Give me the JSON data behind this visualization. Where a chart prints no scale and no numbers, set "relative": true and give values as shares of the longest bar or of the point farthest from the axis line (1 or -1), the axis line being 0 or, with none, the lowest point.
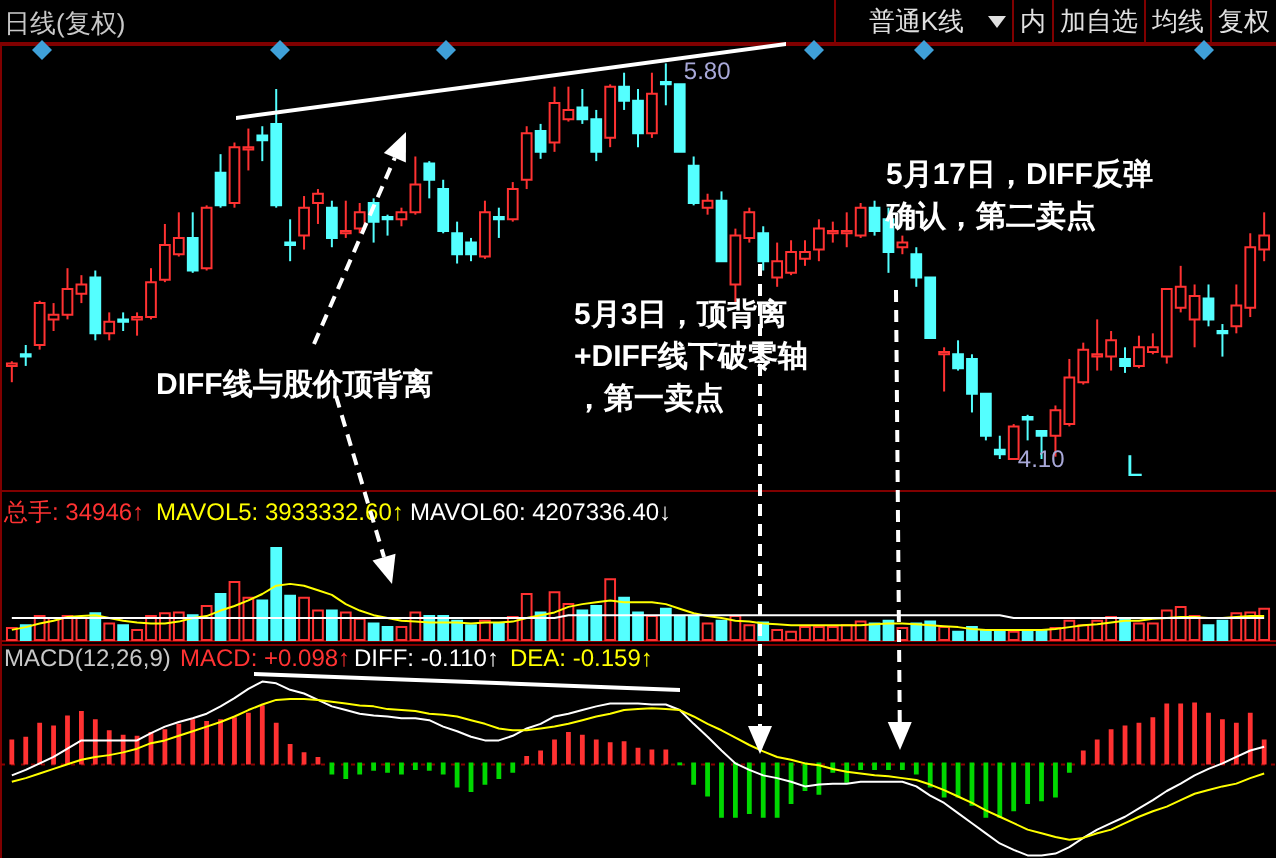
{
  "chart_data": [
    {
      "type": "candlestick",
      "title": "日线(复权)",
      "categories": [
        null,
        null,
        null,
        null,
        null,
        null,
        null,
        null,
        null,
        null,
        null,
        null,
        null,
        null,
        null,
        null,
        null,
        null,
        null,
        null,
        null,
        null,
        null,
        null,
        null,
        null,
        null,
        null,
        null,
        null,
        null,
        null,
        null,
        null,
        null,
        null,
        null,
        null,
        null,
        null,
        null,
        null,
        null,
        null,
        null,
        null,
        null,
        null,
        null,
        null,
        null,
        null,
        null,
        null,
        null,
        null,
        null,
        null,
        null,
        null,
        null,
        null,
        null,
        null,
        null,
        null,
        null,
        null,
        null,
        null,
        null,
        null,
        null,
        null,
        null,
        null,
        null,
        null,
        null,
        null,
        null,
        null,
        null,
        null,
        null,
        null,
        null,
        null,
        null,
        null,
        null
      ],
      "ohlc": [
        [
          4.5,
          4.52,
          4.43,
          4.51
        ],
        [
          4.55,
          4.59,
          4.5,
          4.54
        ],
        [
          4.59,
          4.78,
          4.57,
          4.77
        ],
        [
          4.7,
          4.77,
          4.65,
          4.72
        ],
        [
          4.72,
          4.92,
          4.7,
          4.83
        ],
        [
          4.81,
          4.89,
          4.77,
          4.85
        ],
        [
          4.88,
          4.91,
          4.61,
          4.64
        ],
        [
          4.64,
          4.73,
          4.61,
          4.69
        ],
        [
          4.7,
          4.73,
          4.65,
          4.69
        ],
        [
          4.7,
          4.73,
          4.63,
          4.71
        ],
        [
          4.71,
          4.92,
          4.7,
          4.86
        ],
        [
          4.87,
          5.11,
          4.86,
          5.02
        ],
        [
          4.98,
          5.16,
          4.97,
          5.05
        ],
        [
          5.05,
          5.16,
          4.9,
          4.91
        ],
        [
          4.92,
          5.19,
          4.91,
          5.18
        ],
        [
          5.33,
          5.41,
          5.18,
          5.19
        ],
        [
          5.2,
          5.46,
          5.18,
          5.44
        ],
        [
          5.43,
          5.52,
          5.34,
          5.44
        ],
        [
          5.49,
          5.53,
          5.38,
          5.47
        ],
        [
          5.54,
          5.69,
          5.18,
          5.19
        ],
        [
          5.03,
          5.13,
          4.95,
          5.02
        ],
        [
          5.06,
          5.23,
          5.0,
          5.18
        ],
        [
          5.2,
          5.26,
          5.11,
          5.24
        ],
        [
          5.18,
          5.21,
          5.01,
          5.05
        ],
        [
          5.07,
          5.21,
          5.05,
          5.08
        ],
        [
          5.09,
          5.2,
          5.07,
          5.16
        ],
        [
          5.2,
          5.22,
          5.03,
          5.12
        ],
        [
          5.14,
          5.15,
          5.06,
          5.13
        ],
        [
          5.13,
          5.18,
          5.1,
          5.16
        ],
        [
          5.16,
          5.4,
          5.15,
          5.28
        ],
        [
          5.37,
          5.38,
          5.22,
          5.3
        ],
        [
          5.26,
          5.3,
          5.07,
          5.08
        ],
        [
          5.07,
          5.12,
          4.94,
          4.98
        ],
        [
          5.03,
          5.05,
          4.95,
          4.98
        ],
        [
          4.97,
          5.21,
          4.96,
          5.16
        ],
        [
          5.14,
          5.18,
          5.05,
          5.13
        ],
        [
          5.13,
          5.29,
          5.12,
          5.26
        ],
        [
          5.3,
          5.53,
          5.26,
          5.5
        ],
        [
          5.51,
          5.54,
          5.39,
          5.42
        ],
        [
          5.46,
          5.7,
          5.42,
          5.63
        ],
        [
          5.56,
          5.7,
          5.55,
          5.6
        ],
        [
          5.61,
          5.69,
          5.54,
          5.56
        ],
        [
          5.56,
          5.6,
          5.38,
          5.42
        ],
        [
          5.48,
          5.71,
          5.44,
          5.7
        ],
        [
          5.7,
          5.76,
          5.6,
          5.64
        ],
        [
          5.64,
          5.69,
          5.44,
          5.5
        ],
        [
          5.5,
          5.76,
          5.48,
          5.67
        ],
        [
          5.72,
          5.8,
          5.62,
          5.71
        ],
        [
          5.71,
          5.71,
          5.42,
          5.42
        ],
        [
          5.36,
          5.4,
          5.19,
          5.2
        ],
        [
          5.18,
          5.24,
          5.15,
          5.21
        ],
        [
          5.21,
          5.25,
          4.95,
          4.95
        ],
        [
          4.85,
          5.09,
          4.77,
          5.06
        ],
        [
          5.05,
          5.18,
          5.03,
          5.16
        ],
        [
          5.07,
          5.1,
          4.91,
          4.95
        ],
        [
          4.88,
          5.03,
          4.84,
          4.95
        ],
        [
          4.9,
          5.04,
          4.89,
          4.99
        ],
        [
          4.96,
          5.04,
          4.93,
          4.99
        ],
        [
          5.0,
          5.13,
          4.95,
          5.09
        ],
        [
          5.07,
          5.12,
          5.03,
          5.08
        ],
        [
          5.07,
          5.16,
          5.01,
          5.08
        ],
        [
          5.06,
          5.2,
          5.05,
          5.18
        ],
        [
          5.18,
          5.21,
          5.06,
          5.08
        ],
        [
          5.13,
          5.18,
          4.9,
          4.99
        ],
        [
          5.01,
          5.06,
          4.98,
          5.03
        ],
        [
          4.98,
          5.01,
          4.84,
          4.88
        ],
        [
          4.88,
          4.88,
          4.62,
          4.62
        ],
        [
          4.55,
          4.58,
          4.39,
          4.56
        ],
        [
          4.55,
          4.61,
          4.48,
          4.49
        ],
        [
          4.53,
          4.55,
          4.3,
          4.38
        ],
        [
          4.38,
          4.38,
          4.18,
          4.2
        ],
        [
          4.14,
          4.2,
          4.1,
          4.12
        ],
        [
          4.1,
          4.25,
          4.1,
          4.24
        ],
        [
          4.28,
          4.29,
          4.18,
          4.27
        ],
        [
          4.22,
          4.22,
          4.1,
          4.2
        ],
        [
          4.2,
          4.33,
          4.11,
          4.31
        ],
        [
          4.25,
          4.53,
          4.24,
          4.45
        ],
        [
          4.43,
          4.6,
          4.42,
          4.57
        ],
        [
          4.54,
          4.7,
          4.48,
          4.55
        ],
        [
          4.54,
          4.65,
          4.48,
          4.61
        ],
        [
          4.53,
          4.58,
          4.47,
          4.5
        ],
        [
          4.5,
          4.63,
          4.49,
          4.58
        ],
        [
          4.56,
          4.64,
          4.55,
          4.58
        ],
        [
          4.54,
          4.83,
          4.51,
          4.83
        ],
        [
          4.75,
          4.93,
          4.73,
          4.84
        ],
        [
          4.7,
          4.85,
          4.58,
          4.8
        ],
        [
          4.79,
          4.85,
          4.67,
          4.7
        ],
        [
          4.65,
          4.68,
          4.54,
          4.64
        ],
        [
          4.67,
          4.85,
          4.64,
          4.76
        ],
        [
          4.75,
          5.07,
          4.71,
          5.01
        ],
        [
          5.0,
          5.16,
          4.95,
          5.06
        ]
      ],
      "colors": [
        "#ff3232",
        "#54ffff",
        "#ff3232",
        "#ff3232",
        "#ff3232",
        "#ff3232",
        "#54ffff",
        "#ff3232",
        "#54ffff",
        "#ff3232",
        "#ff3232",
        "#ff3232",
        "#ff3232",
        "#54ffff",
        "#ff3232",
        "#54ffff",
        "#ff3232",
        "#ff3232",
        "#54ffff",
        "#54ffff",
        "#54ffff",
        "#ff3232",
        "#ff3232",
        "#54ffff",
        "#ff3232",
        "#ff3232",
        "#54ffff",
        "#54ffff",
        "#ff3232",
        "#ff3232",
        "#54ffff",
        "#54ffff",
        "#54ffff",
        "#54ffff",
        "#ff3232",
        "#54ffff",
        "#ff3232",
        "#ff3232",
        "#54ffff",
        "#ff3232",
        "#ff3232",
        "#54ffff",
        "#54ffff",
        "#ff3232",
        "#54ffff",
        "#54ffff",
        "#ff3232",
        "#54ffff",
        "#54ffff",
        "#54ffff",
        "#ff3232",
        "#54ffff",
        "#ff3232",
        "#ff3232",
        "#54ffff",
        "#ff3232",
        "#ff3232",
        "#ff3232",
        "#ff3232",
        "#ff3232",
        "#ff3232",
        "#ff3232",
        "#54ffff",
        "#54ffff",
        "#ff3232",
        "#54ffff",
        "#54ffff",
        "#ff3232",
        "#54ffff",
        "#54ffff",
        "#54ffff",
        "#54ffff",
        "#ff3232",
        "#54ffff",
        "#54ffff",
        "#ff3232",
        "#ff3232",
        "#ff3232",
        "#ff3232",
        "#ff3232",
        "#54ffff",
        "#ff3232",
        "#ff3232",
        "#ff3232",
        "#ff3232",
        "#ff3232",
        "#54ffff",
        "#54ffff",
        "#ff3232",
        "#ff3232",
        "#ff3232"
      ],
      "annotations": [
        "普通K线",
        "内",
        "加自选",
        "均线",
        "复权",
        "5.80",
        "4.10",
        "DIFF线与股价顶背离",
        "5月3日，顶背离",
        "+DIFF线下破零轴",
        "，第一卖点",
        "5月17日，DIFF反弹",
        "确认，第二卖点",
        "L"
      ]
    },
    {
      "type": "bar",
      "relative": true,
      "categories": [
        null,
        null,
        null,
        null,
        null,
        null,
        null,
        null,
        null,
        null,
        null,
        null,
        null,
        null,
        null,
        null,
        null,
        null,
        null,
        null,
        null,
        null,
        null,
        null,
        null,
        null,
        null,
        null,
        null,
        null,
        null,
        null,
        null,
        null,
        null,
        null,
        null,
        null,
        null,
        null,
        null,
        null,
        null,
        null,
        null,
        null,
        null,
        null,
        null,
        null,
        null,
        null,
        null,
        null,
        null,
        null,
        null,
        null,
        null,
        null,
        null,
        null,
        null,
        null,
        null,
        null,
        null,
        null,
        null,
        null,
        null,
        null,
        null,
        null,
        null,
        null,
        null,
        null,
        null,
        null,
        null,
        null,
        null,
        null,
        null,
        null,
        null,
        null,
        null,
        null,
        null
      ],
      "series": [
        {
          "name": "总手:",
          "type": "bar",
          "values": [
            0.13,
            0.16,
            0.26,
            0.24,
            0.26,
            0.24,
            0.29,
            0.18,
            0.16,
            0.11,
            0.26,
            0.29,
            0.3,
            0.27,
            0.37,
            0.5,
            0.63,
            0.46,
            0.43,
            1,
            0.48,
            0.46,
            0.32,
            0.32,
            0.3,
            0.23,
            0.18,
            0.14,
            0.14,
            0.3,
            0.26,
            0.26,
            0.21,
            0.16,
            0.21,
            0.18,
            0.25,
            0.5,
            0.3,
            0.52,
            0.39,
            0.32,
            0.37,
            0.66,
            0.46,
            0.3,
            0.26,
            0.34,
            0.26,
            0.25,
            0.18,
            0.21,
            0.26,
            0.16,
            0.19,
            0.11,
            0.09,
            0.14,
            0.14,
            0.14,
            0.16,
            0.2,
            0.18,
            0.21,
            0.13,
            0.18,
            0.2,
            0.14,
            0.09,
            0.14,
            0.11,
            0.09,
            0.09,
            0.09,
            0.11,
            0.13,
            0.21,
            0.16,
            0.21,
            0.25,
            0.23,
            0.18,
            0.18,
            0.32,
            0.36,
            0.26,
            0.16,
            0.21,
            0.29,
            0.3,
            0.34
          ],
          "colors": [
            "#ff3232",
            "#54ffff",
            "#ff3232",
            "#ff3232",
            "#ff3232",
            "#ff3232",
            "#54ffff",
            "#ff3232",
            "#54ffff",
            "#ff3232",
            "#ff3232",
            "#ff3232",
            "#ff3232",
            "#54ffff",
            "#ff3232",
            "#54ffff",
            "#ff3232",
            "#ff3232",
            "#54ffff",
            "#54ffff",
            "#54ffff",
            "#ff3232",
            "#ff3232",
            "#54ffff",
            "#ff3232",
            "#ff3232",
            "#54ffff",
            "#54ffff",
            "#ff3232",
            "#ff3232",
            "#54ffff",
            "#54ffff",
            "#54ffff",
            "#54ffff",
            "#ff3232",
            "#54ffff",
            "#ff3232",
            "#ff3232",
            "#54ffff",
            "#ff3232",
            "#ff3232",
            "#54ffff",
            "#54ffff",
            "#ff3232",
            "#54ffff",
            "#54ffff",
            "#ff3232",
            "#54ffff",
            "#54ffff",
            "#54ffff",
            "#ff3232",
            "#54ffff",
            "#ff3232",
            "#ff3232",
            "#54ffff",
            "#ff3232",
            "#ff3232",
            "#ff3232",
            "#ff3232",
            "#ff3232",
            "#ff3232",
            "#ff3232",
            "#54ffff",
            "#54ffff",
            "#ff3232",
            "#54ffff",
            "#54ffff",
            "#ff3232",
            "#54ffff",
            "#54ffff",
            "#54ffff",
            "#54ffff",
            "#ff3232",
            "#54ffff",
            "#54ffff",
            "#ff3232",
            "#ff3232",
            "#ff3232",
            "#ff3232",
            "#ff3232",
            "#54ffff",
            "#ff3232",
            "#ff3232",
            "#ff3232",
            "#ff3232",
            "#ff3232",
            "#54ffff",
            "#54ffff",
            "#ff3232",
            "#ff3232",
            "#ff3232"
          ]
        },
        {
          "name": "MAVOL5:",
          "type": "line",
          "color": "#ffff00",
          "values": [
            0.11,
            0.14,
            0.18,
            0.21,
            0.25,
            0.26,
            0.27,
            0.24,
            0.21,
            0.19,
            0.18,
            0.18,
            0.2,
            0.24,
            0.26,
            0.32,
            0.37,
            0.43,
            0.5,
            0.59,
            0.61,
            0.59,
            0.54,
            0.49,
            0.39,
            0.32,
            0.27,
            0.24,
            0.21,
            0.2,
            0.19,
            0.19,
            0.19,
            0.18,
            0.19,
            0.19,
            0.2,
            0.24,
            0.27,
            0.3,
            0.36,
            0.39,
            0.41,
            0.43,
            0.41,
            0.41,
            0.41,
            0.39,
            0.34,
            0.29,
            0.26,
            0.24,
            0.21,
            0.2,
            0.18,
            0.17,
            0.16,
            0.16,
            0.16,
            0.16,
            0.16,
            0.16,
            0.17,
            0.18,
            0.18,
            0.17,
            0.16,
            0.15,
            0.14,
            0.12,
            0.11,
            0.11,
            0.11,
            0.11,
            0.11,
            0.12,
            0.14,
            0.16,
            0.17,
            0.19,
            0.21,
            0.21,
            0.23,
            0.24,
            0.25,
            0.25,
            0.24,
            0.24,
            0.25,
            0.26,
            0.26
          ]
        },
        {
          "name": "MAVOL60:",
          "type": "line",
          "color": "#ffffff",
          "values": [
            0.24,
            0.24,
            0.24,
            0.24,
            0.24,
            0.24,
            0.24,
            0.24,
            0.24,
            0.24,
            0.24,
            0.24,
            0.24,
            0.24,
            0.24,
            0.24,
            0.24,
            0.24,
            0.24,
            0.24,
            0.24,
            0.24,
            0.24,
            0.24,
            0.24,
            0.24,
            0.24,
            0.24,
            0.24,
            0.24,
            0.24,
            0.24,
            0.24,
            0.24,
            0.24,
            0.24,
            0.24,
            0.24,
            0.24,
            0.24,
            0.27,
            0.27,
            0.27,
            0.27,
            0.27,
            0.27,
            0.27,
            0.27,
            0.27,
            0.27,
            0.27,
            0.27,
            0.27,
            0.27,
            0.27,
            0.27,
            0.27,
            0.27,
            0.27,
            0.27,
            0.27,
            0.27,
            0.27,
            0.27,
            0.27,
            0.27,
            0.27,
            0.27,
            0.27,
            0.27,
            0.27,
            0.27,
            0.24,
            0.24,
            0.24,
            0.24,
            0.24,
            0.24,
            0.24,
            0.24,
            0.24,
            0.24,
            0.24,
            0.24,
            0.24,
            0.24,
            0.24,
            0.24,
            0.24,
            0.24,
            0.24
          ]
        }
      ],
      "annotations": [
        "34946↑",
        "3933332.60↑",
        "4207336.40↓"
      ]
    },
    {
      "type": "bar",
      "relative": true,
      "title": "MACD(12,26,9)",
      "ref_lines": [
        {
          "axis": "y",
          "value": 0,
          "color": "#8b0000",
          "line_style": "dotted"
        }
      ],
      "categories": [
        null,
        null,
        null,
        null,
        null,
        null,
        null,
        null,
        null,
        null,
        null,
        null,
        null,
        null,
        null,
        null,
        null,
        null,
        null,
        null,
        null,
        null,
        null,
        null,
        null,
        null,
        null,
        null,
        null,
        null,
        null,
        null,
        null,
        null,
        null,
        null,
        null,
        null,
        null,
        null,
        null,
        null,
        null,
        null,
        null,
        null,
        null,
        null,
        null,
        null,
        null,
        null,
        null,
        null,
        null,
        null,
        null,
        null,
        null,
        null,
        null,
        null,
        null,
        null,
        null,
        null,
        null,
        null,
        null,
        null,
        null,
        null,
        null,
        null,
        null,
        null,
        null,
        null,
        null,
        null,
        null,
        null,
        null,
        null,
        null,
        null,
        null,
        null,
        null,
        null,
        null
      ],
      "series": [
        {
          "name": "MACD:",
          "type": "bar",
          "values": [
            0.25,
            0.28,
            0.43,
            0.4,
            0.51,
            0.56,
            0.47,
            0.35,
            0.3,
            0.29,
            0.33,
            0.36,
            0.42,
            0.47,
            0.45,
            0.47,
            0.49,
            0.54,
            0.62,
            0.43,
            0.2,
            0.11,
            0.06,
            -0.11,
            -0.16,
            -0.11,
            -0.07,
            -0.09,
            -0.11,
            -0.06,
            -0.07,
            -0.11,
            -0.25,
            -0.3,
            -0.22,
            -0.16,
            -0.09,
            0.07,
            0.13,
            0.25,
            0.33,
            0.3,
            0.25,
            0.22,
            0.23,
            0.16,
            0.14,
            0.14,
            -0.01,
            -0.22,
            -0.35,
            -0.58,
            -0.58,
            -0.54,
            -0.58,
            -0.58,
            -0.43,
            -0.29,
            -0.33,
            -0.09,
            -0.2,
            -0.06,
            -0.06,
            -0.06,
            -0.06,
            -0.11,
            -0.25,
            -0.36,
            -0.36,
            -0.45,
            -0.58,
            -0.58,
            -0.51,
            -0.43,
            -0.4,
            -0.36,
            -0.09,
            0.13,
            0.25,
            0.36,
            0.4,
            0.43,
            0.49,
            0.64,
            0.64,
            0.65,
            0.54,
            0.47,
            0.43,
            0.54,
            0.25
          ],
          "colors": [
            "#ff3232",
            "#ff3232",
            "#ff3232",
            "#ff3232",
            "#ff3232",
            "#ff3232",
            "#ff3232",
            "#ff3232",
            "#ff3232",
            "#ff3232",
            "#ff3232",
            "#ff3232",
            "#ff3232",
            "#ff3232",
            "#ff3232",
            "#ff3232",
            "#ff3232",
            "#ff3232",
            "#ff3232",
            "#ff3232",
            "#ff3232",
            "#ff3232",
            "#ff3232",
            "#00d800",
            "#00d800",
            "#00d800",
            "#00d800",
            "#00d800",
            "#00d800",
            "#00d800",
            "#00d800",
            "#00d800",
            "#00d800",
            "#00d800",
            "#00d800",
            "#00d800",
            "#00d800",
            "#ff3232",
            "#ff3232",
            "#ff3232",
            "#ff3232",
            "#ff3232",
            "#ff3232",
            "#ff3232",
            "#ff3232",
            "#ff3232",
            "#ff3232",
            "#ff3232",
            "#00d800",
            "#00d800",
            "#00d800",
            "#00d800",
            "#00d800",
            "#00d800",
            "#00d800",
            "#00d800",
            "#00d800",
            "#00d800",
            "#00d800",
            "#00d800",
            "#00d800",
            "#00d800",
            "#00d800",
            "#00d800",
            "#00d800",
            "#00d800",
            "#00d800",
            "#00d800",
            "#00d800",
            "#00d800",
            "#00d800",
            "#00d800",
            "#00d800",
            "#00d800",
            "#00d800",
            "#00d800",
            "#00d800",
            "#ff3232",
            "#ff3232",
            "#ff3232",
            "#ff3232",
            "#ff3232",
            "#ff3232",
            "#ff3232",
            "#ff3232",
            "#ff3232",
            "#ff3232",
            "#ff3232",
            "#ff3232",
            "#ff3232",
            "#ff3232"
          ]
        },
        {
          "name": "DIFF:",
          "type": "line",
          "color": "#ffffff",
          "values": [
            -0.13,
            -0.07,
            0,
            0.07,
            0.16,
            0.25,
            0.25,
            0.25,
            0.25,
            0.25,
            0.33,
            0.4,
            0.45,
            0.49,
            0.54,
            0.62,
            0.71,
            0.81,
            0.89,
            0.87,
            0.8,
            0.76,
            0.69,
            0.62,
            0.58,
            0.54,
            0.52,
            0.51,
            0.49,
            0.49,
            0.47,
            0.4,
            0.35,
            0.29,
            0.25,
            0.25,
            0.3,
            0.38,
            0.43,
            0.51,
            0.54,
            0.58,
            0.62,
            0.65,
            0.65,
            0.65,
            0.64,
            0.64,
            0.58,
            0.43,
            0.29,
            0.14,
            0,
            -0.07,
            -0.13,
            -0.16,
            -0.2,
            -0.25,
            -0.23,
            -0.22,
            -0.22,
            -0.2,
            -0.2,
            -0.2,
            -0.2,
            -0.25,
            -0.35,
            -0.43,
            -0.54,
            -0.65,
            -0.76,
            -0.87,
            -0.94,
            -1,
            -1,
            -0.98,
            -0.91,
            -0.81,
            -0.72,
            -0.65,
            -0.58,
            -0.49,
            -0.4,
            -0.3,
            -0.22,
            -0.13,
            -0.06,
            0,
            0.07,
            0.14,
            0.18
          ]
        },
        {
          "name": "DEA:",
          "type": "line",
          "color": "#ffff00",
          "values": [
            -0.2,
            -0.16,
            -0.11,
            -0.06,
            -0.01,
            0.04,
            0.07,
            0.09,
            0.12,
            0.16,
            0.22,
            0.25,
            0.3,
            0.35,
            0.4,
            0.45,
            0.51,
            0.58,
            0.64,
            0.69,
            0.7,
            0.7,
            0.69,
            0.67,
            0.65,
            0.63,
            0.62,
            0.59,
            0.58,
            0.57,
            0.54,
            0.53,
            0.51,
            0.47,
            0.43,
            0.38,
            0.36,
            0.36,
            0.38,
            0.4,
            0.43,
            0.47,
            0.51,
            0.54,
            0.58,
            0.59,
            0.6,
            0.59,
            0.58,
            0.51,
            0.43,
            0.36,
            0.28,
            0.2,
            0.13,
            0.07,
            0.04,
            0,
            -0.02,
            -0.06,
            -0.09,
            -0.11,
            -0.13,
            -0.14,
            -0.16,
            -0.18,
            -0.23,
            -0.29,
            -0.36,
            -0.43,
            -0.51,
            -0.58,
            -0.65,
            -0.72,
            -0.76,
            -0.8,
            -0.83,
            -0.81,
            -0.76,
            -0.72,
            -0.65,
            -0.58,
            -0.52,
            -0.47,
            -0.4,
            -0.33,
            -0.29,
            -0.25,
            -0.22,
            -0.16,
            -0.11
          ]
        }
      ],
      "annotations": [
        "+0.098↑",
        "-0.110↑",
        "-0.159↑"
      ]
    }
  ]
}
